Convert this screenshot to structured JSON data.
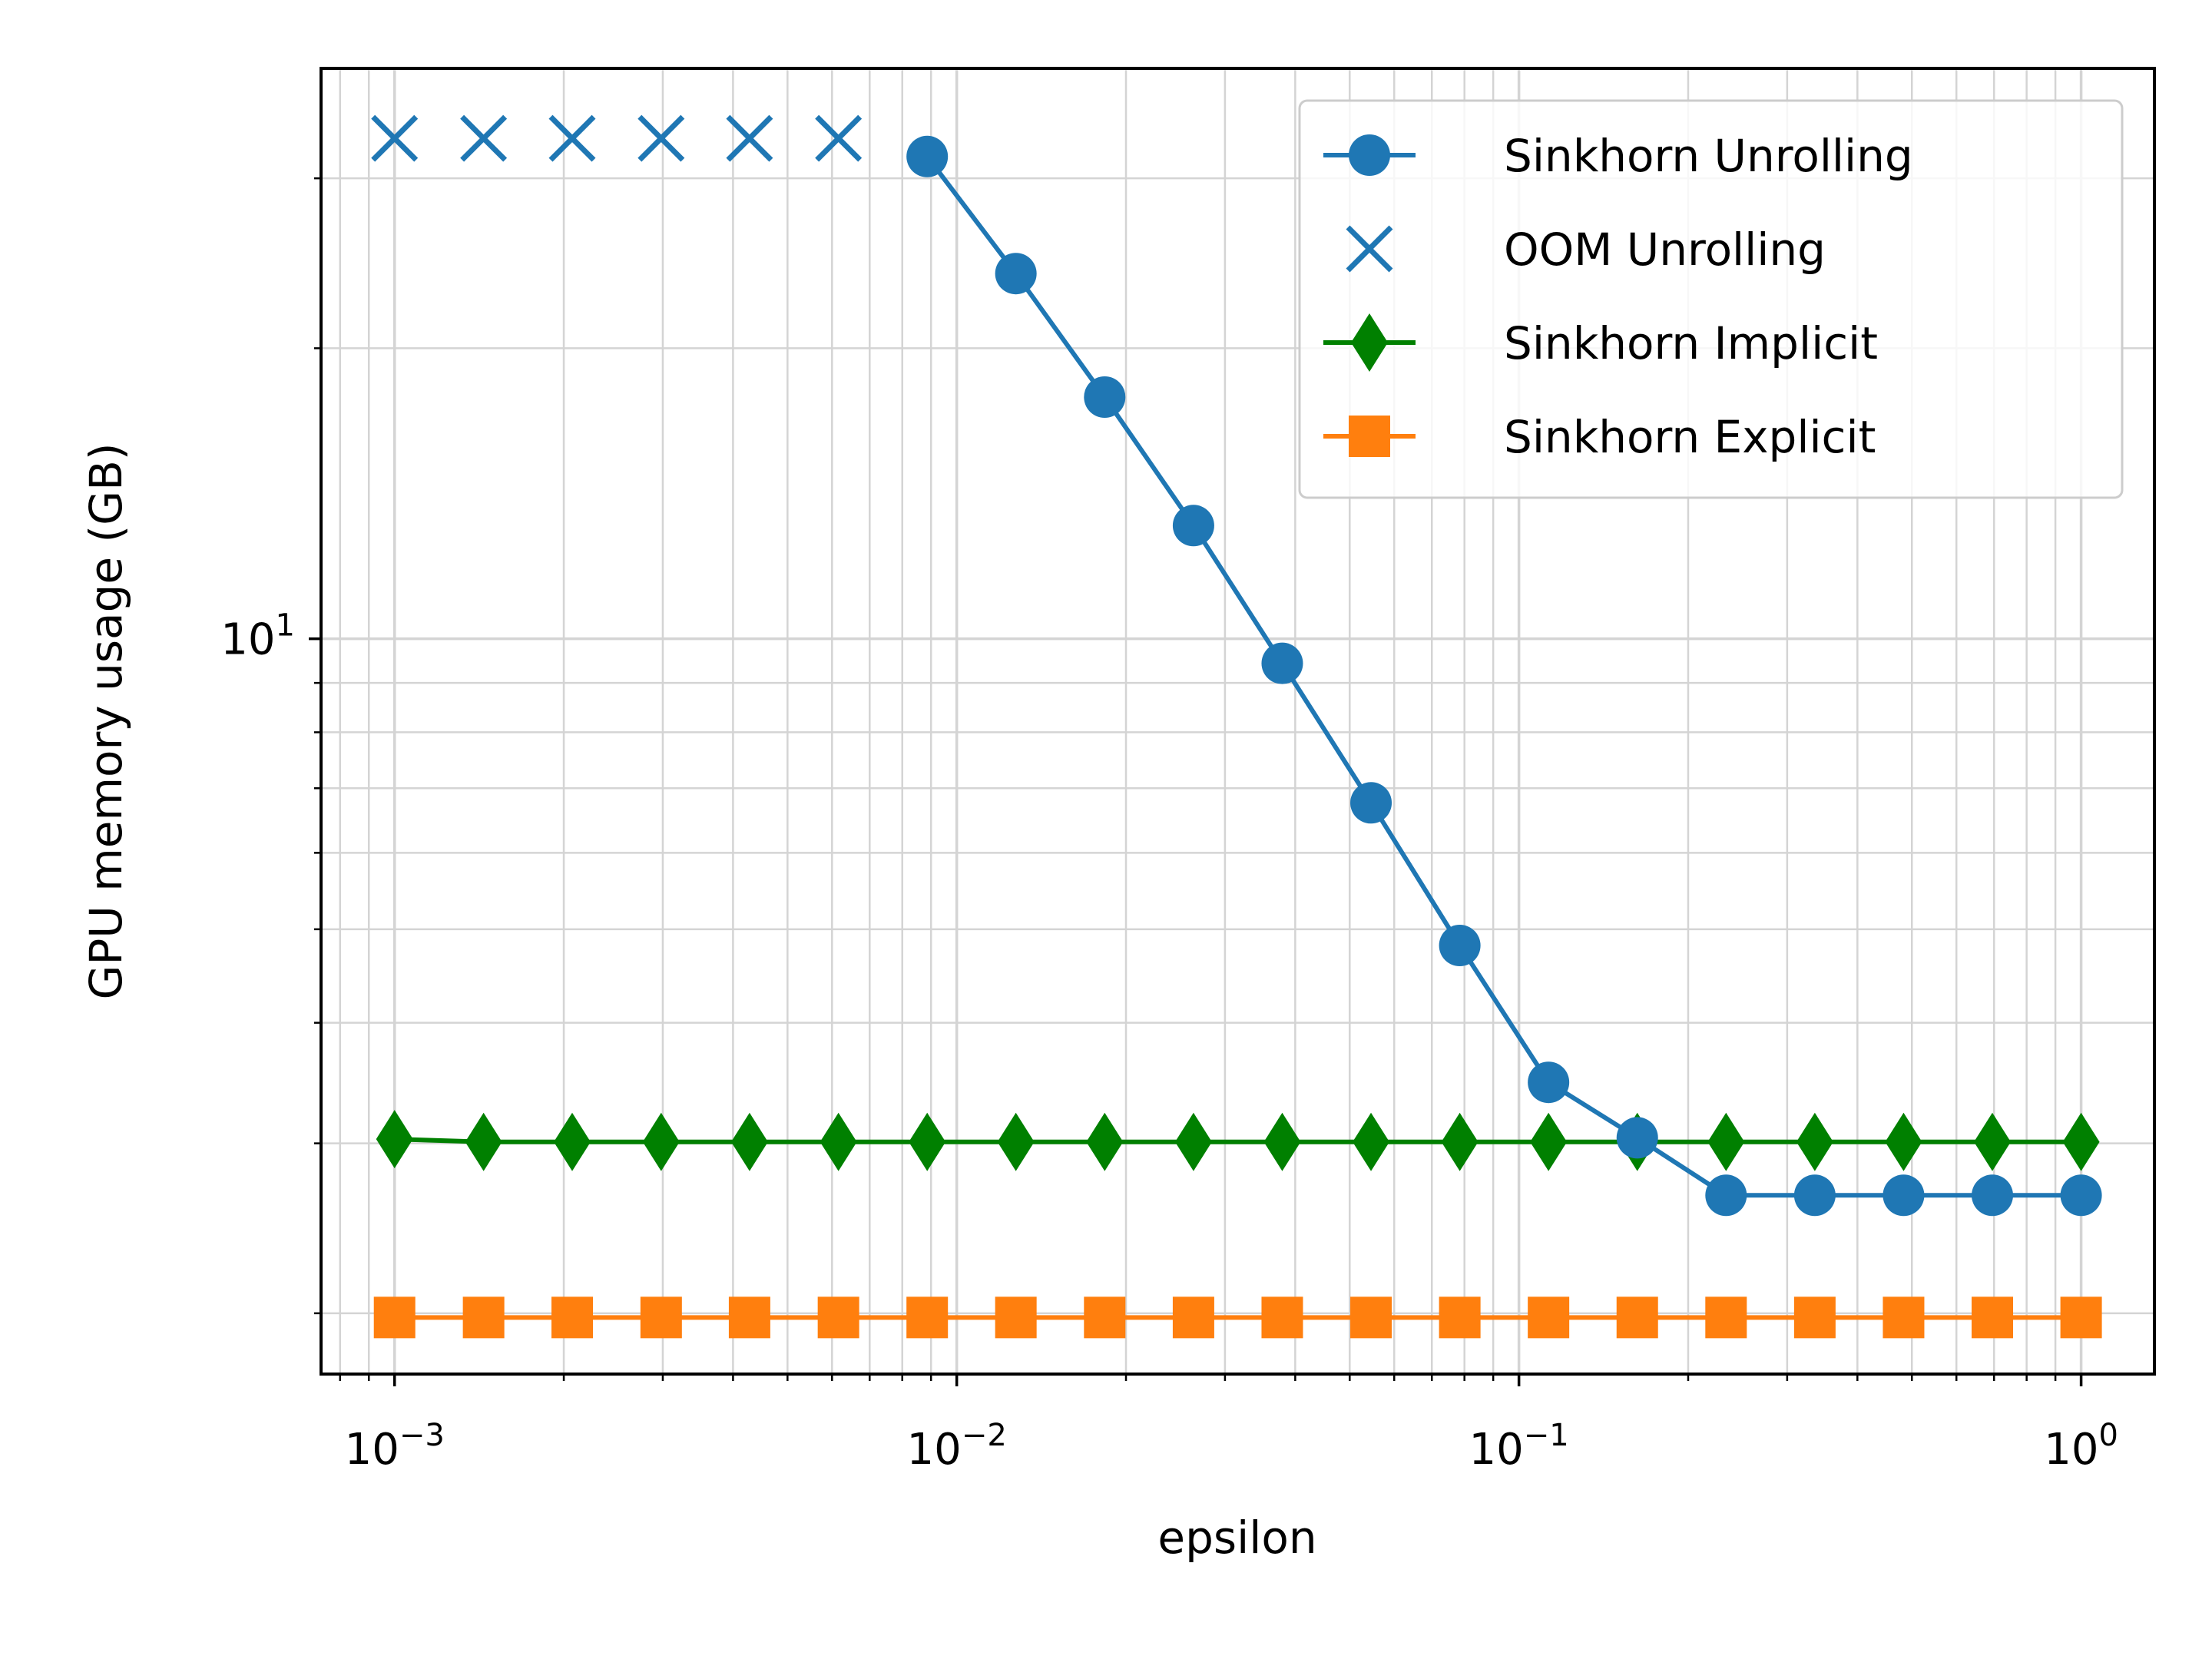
{
  "chart_data": {
    "type": "line",
    "title": "",
    "xlabel": "epsilon",
    "ylabel": "GPU memory usage (GB)",
    "xscale": "log",
    "yscale": "log",
    "xlim": [
      0.00074,
      1.35
    ],
    "ylim": [
      1.73,
      39.0
    ],
    "grid": {
      "major": true,
      "minor": true
    },
    "legend_position": "top-right",
    "x_ticks": [
      {
        "value": 0.001,
        "base": "10",
        "exp": "−3"
      },
      {
        "value": 0.01,
        "base": "10",
        "exp": "−2"
      },
      {
        "value": 0.1,
        "base": "10",
        "exp": "−1"
      },
      {
        "value": 1,
        "base": "10",
        "exp": "0"
      }
    ],
    "y_ticks": [
      {
        "value": 10,
        "base": "10",
        "exp": "1"
      }
    ],
    "series": [
      {
        "name": "Sinkhorn Unrolling",
        "color": "#1f77b4",
        "marker": "circle",
        "line": true,
        "x": [
          0.00886,
          0.01274,
          0.01833,
          0.02637,
          0.03793,
          0.05456,
          0.07848,
          0.11288,
          0.16238,
          0.23357,
          0.33598,
          0.48329,
          0.69519,
          1.0
        ],
        "y": [
          31.6,
          23.9,
          17.8,
          13.1,
          9.43,
          6.76,
          4.81,
          3.47,
          3.04,
          2.65,
          2.65,
          2.65,
          2.65,
          2.65
        ]
      },
      {
        "name": "OOM Unrolling",
        "color": "#1f77b4",
        "marker": "x",
        "line": false,
        "x": [
          0.001,
          0.00144,
          0.00207,
          0.00298,
          0.00428,
          0.00616
        ],
        "y": [
          33.0,
          33.0,
          33.0,
          33.0,
          33.0,
          33.0
        ]
      },
      {
        "name": "Sinkhorn Implicit",
        "color": "#008000",
        "marker": "diamond",
        "line": true,
        "x": [
          0.001,
          0.00144,
          0.00207,
          0.00298,
          0.00428,
          0.00616,
          0.00886,
          0.01274,
          0.01833,
          0.02637,
          0.03793,
          0.05456,
          0.07848,
          0.11288,
          0.16238,
          0.23357,
          0.33598,
          0.48329,
          0.69519,
          1.0
        ],
        "y": [
          3.03,
          3.01,
          3.01,
          3.01,
          3.01,
          3.01,
          3.01,
          3.01,
          3.01,
          3.01,
          3.01,
          3.01,
          3.01,
          3.01,
          3.01,
          3.01,
          3.01,
          3.01,
          3.01,
          3.01
        ]
      },
      {
        "name": "Sinkhorn Explicit",
        "color": "#ff7f0e",
        "marker": "square",
        "line": true,
        "x": [
          0.001,
          0.00144,
          0.00207,
          0.00298,
          0.00428,
          0.00616,
          0.00886,
          0.01274,
          0.01833,
          0.02637,
          0.03793,
          0.05456,
          0.07848,
          0.11288,
          0.16238,
          0.23357,
          0.33598,
          0.48329,
          0.69519,
          1.0
        ],
        "y": [
          1.98,
          1.98,
          1.98,
          1.98,
          1.98,
          1.98,
          1.98,
          1.98,
          1.98,
          1.98,
          1.98,
          1.98,
          1.98,
          1.98,
          1.98,
          1.98,
          1.98,
          1.98,
          1.98,
          1.98
        ]
      }
    ]
  }
}
